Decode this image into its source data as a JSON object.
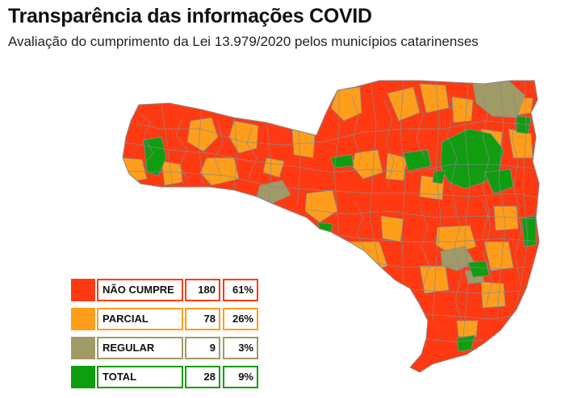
{
  "title": "Transparência das informações COVID",
  "subtitle": "Avaliação do cumprimento da Lei 13.979/2020 pelos municípios catarinenses",
  "colors": {
    "nao_cumpre": "#ff3a12",
    "parcial": "#ff9e1a",
    "regular": "#a09a66",
    "total": "#109d10",
    "border": "#8a8a8a"
  },
  "legend": [
    {
      "label": "NÃO CUMPRE",
      "count": "180",
      "percent": "61%",
      "color": "#ff3a12"
    },
    {
      "label": "PARCIAL",
      "count": "78",
      "percent": "26%",
      "color": "#ff9e1a"
    },
    {
      "label": "REGULAR",
      "count": "9",
      "percent": "3%",
      "color": "#a09a66"
    },
    {
      "label": "TOTAL",
      "count": "28",
      "percent": "9%",
      "color": "#109d10"
    }
  ]
}
